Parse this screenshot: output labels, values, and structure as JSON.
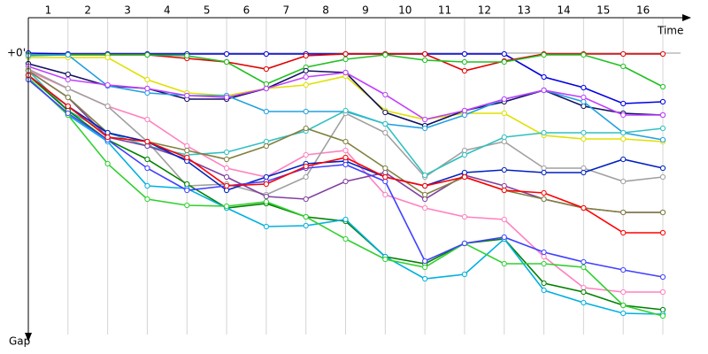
{
  "chart_data": {
    "type": "line",
    "x_label": "Time",
    "y_label": "Gap",
    "x": [
      0,
      1,
      2,
      3,
      4,
      5,
      6,
      7,
      8,
      9,
      10,
      11,
      12,
      13,
      14,
      15,
      16
    ],
    "xlim": [
      0,
      16
    ],
    "ylim": [
      0,
      320
    ],
    "grid": true,
    "xticks": [
      {
        "value": 0.5,
        "label": "1"
      },
      {
        "value": 1.5,
        "label": "2"
      },
      {
        "value": 2.5,
        "label": "3"
      },
      {
        "value": 3.5,
        "label": "4"
      },
      {
        "value": 4.5,
        "label": "5"
      },
      {
        "value": 5.5,
        "label": "6"
      },
      {
        "value": 6.5,
        "label": "7"
      },
      {
        "value": 7.5,
        "label": "8"
      },
      {
        "value": 8.5,
        "label": "9"
      },
      {
        "value": 9.5,
        "label": "10"
      },
      {
        "value": 10.5,
        "label": "11"
      },
      {
        "value": 11.5,
        "label": "12"
      },
      {
        "value": 12.5,
        "label": "13"
      },
      {
        "value": 13.5,
        "label": "14"
      },
      {
        "value": 14.5,
        "label": "15"
      },
      {
        "value": 15.5,
        "label": "16"
      }
    ],
    "yticks": [
      {
        "value": 0,
        "label": "+0'"
      }
    ],
    "series": [
      {
        "color": "#0000e0",
        "values": [
          0,
          1,
          1,
          1,
          1,
          1,
          1,
          1,
          1,
          1,
          1,
          1,
          1,
          27,
          39,
          57,
          55
        ]
      },
      {
        "color": "#e00000",
        "values": [
          2,
          2,
          2,
          2,
          6,
          10,
          18,
          3,
          1,
          1,
          1,
          20,
          9,
          1,
          1,
          1,
          1
        ]
      },
      {
        "color": "#20c020",
        "values": [
          2,
          2,
          2,
          2,
          3,
          10,
          35,
          16,
          7,
          2,
          8,
          10,
          10,
          2,
          2,
          15,
          38
        ]
      },
      {
        "color": "#e0e000",
        "values": [
          5,
          5,
          5,
          30,
          45,
          48,
          40,
          36,
          26,
          65,
          75,
          68,
          68,
          93,
          97,
          97,
          100
        ]
      },
      {
        "color": "#101060",
        "values": [
          12,
          24,
          37,
          40,
          52,
          52,
          40,
          20,
          22,
          67,
          82,
          65,
          55,
          42,
          60,
          68,
          70
        ]
      },
      {
        "color": "#20a0e0",
        "values": [
          3,
          2,
          37,
          45,
          48,
          48,
          66,
          66,
          66,
          80,
          85,
          70,
          52,
          42,
          55,
          90,
          98
        ]
      },
      {
        "color": "#c040ff",
        "values": [
          15,
          30,
          36,
          40,
          48,
          50,
          40,
          27,
          22,
          47,
          75,
          65,
          52,
          42,
          50,
          70,
          70
        ]
      },
      {
        "color": "#ff80c0",
        "values": [
          20,
          40,
          60,
          75,
          105,
          130,
          140,
          115,
          110,
          160,
          175,
          185,
          188,
          230,
          265,
          270,
          270
        ]
      },
      {
        "color": "#a0a0a0",
        "values": [
          18,
          40,
          60,
          100,
          150,
          148,
          160,
          140,
          68,
          90,
          140,
          110,
          100,
          130,
          130,
          145,
          140
        ]
      },
      {
        "color": "#30c0c0",
        "values": [
          20,
          65,
          90,
          105,
          115,
          112,
          100,
          88,
          65,
          80,
          138,
          115,
          95,
          90,
          90,
          90,
          85
        ]
      },
      {
        "color": "#8040a0",
        "values": [
          20,
          50,
          95,
          105,
          120,
          140,
          162,
          165,
          145,
          135,
          165,
          138,
          150,
          165,
          175,
          180,
          180
        ]
      },
      {
        "color": "#808040",
        "values": [
          20,
          50,
          90,
          100,
          110,
          120,
          105,
          85,
          100,
          130,
          160,
          140,
          155,
          165,
          175,
          180,
          180
        ]
      },
      {
        "color": "#008000",
        "values": [
          25,
          65,
          98,
          120,
          148,
          175,
          170,
          185,
          190,
          230,
          238,
          215,
          210,
          260,
          270,
          285,
          290
        ]
      },
      {
        "color": "#0020c0",
        "values": [
          25,
          60,
          90,
          100,
          122,
          155,
          140,
          125,
          122,
          140,
          150,
          135,
          132,
          135,
          135,
          120,
          130
        ]
      },
      {
        "color": "#00b0e0",
        "values": [
          28,
          70,
          100,
          150,
          153,
          175,
          196,
          195,
          188,
          230,
          255,
          250,
          210,
          268,
          282,
          294,
          295
        ]
      },
      {
        "color": "#30d030",
        "values": [
          28,
          70,
          125,
          165,
          172,
          173,
          168,
          185,
          210,
          233,
          242,
          215,
          238,
          238,
          242,
          285,
          297
        ]
      },
      {
        "color": "#4040ff",
        "values": [
          30,
          68,
          98,
          130,
          155,
          150,
          145,
          130,
          126,
          145,
          235,
          215,
          208,
          225,
          236,
          245,
          253
        ]
      },
      {
        "color": "#ff0000",
        "values": [
          25,
          60,
          95,
          100,
          118,
          150,
          148,
          128,
          118,
          140,
          150,
          140,
          155,
          158,
          175,
          203,
          203
        ]
      }
    ]
  }
}
